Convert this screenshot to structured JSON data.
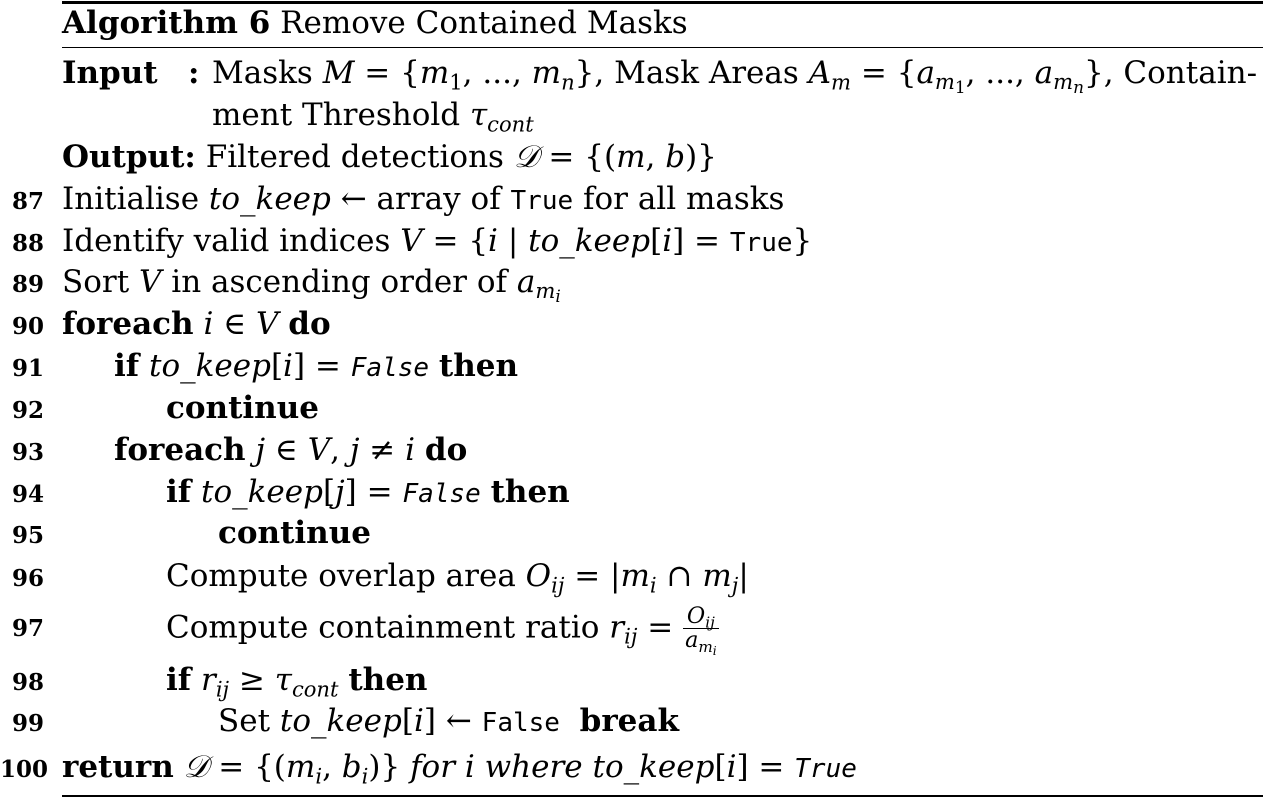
{
  "algorithm": {
    "label": "Algorithm 6",
    "title": "Remove Contained Masks"
  },
  "io": {
    "input_label": "Input",
    "input_colon": ":",
    "input_text_line1": "Masks M = {m1, ..., mn}, Mask Areas Am = {am1, ..., amn}, Contain-",
    "input_text_line2": "ment Threshold τcont",
    "output_label": "Output:",
    "output_text": "Filtered detections 𝒟 = {(m, b)}"
  },
  "lines": [
    {
      "num": "87",
      "text": "Initialise to_keep ← array of True for all masks"
    },
    {
      "num": "88",
      "text": "Identify valid indices V = {i | to_keep[i] = True}"
    },
    {
      "num": "89",
      "text": "Sort V in ascending order of a_mi"
    },
    {
      "num": "90",
      "text": "foreach i ∈ V do"
    },
    {
      "num": "91",
      "text": "if to_keep[i] = False then"
    },
    {
      "num": "92",
      "text": "continue"
    },
    {
      "num": "93",
      "text": "foreach j ∈ V, j ≠ i do"
    },
    {
      "num": "94",
      "text": "if to_keep[j] = False then"
    },
    {
      "num": "95",
      "text": "continue"
    },
    {
      "num": "96",
      "text": "Compute overlap area O_ij = |m_i ∩ m_j|"
    },
    {
      "num": "97",
      "text": "Compute containment ratio r_ij = O_ij / a_mi"
    },
    {
      "num": "98",
      "text": "if r_ij ≥ τ_cont then"
    },
    {
      "num": "99",
      "text": "Set to_keep[i] ← False break"
    },
    {
      "num": "100",
      "text": "return 𝒟 = {(m_i, b_i)} for i where to_keep[i] = True"
    }
  ]
}
